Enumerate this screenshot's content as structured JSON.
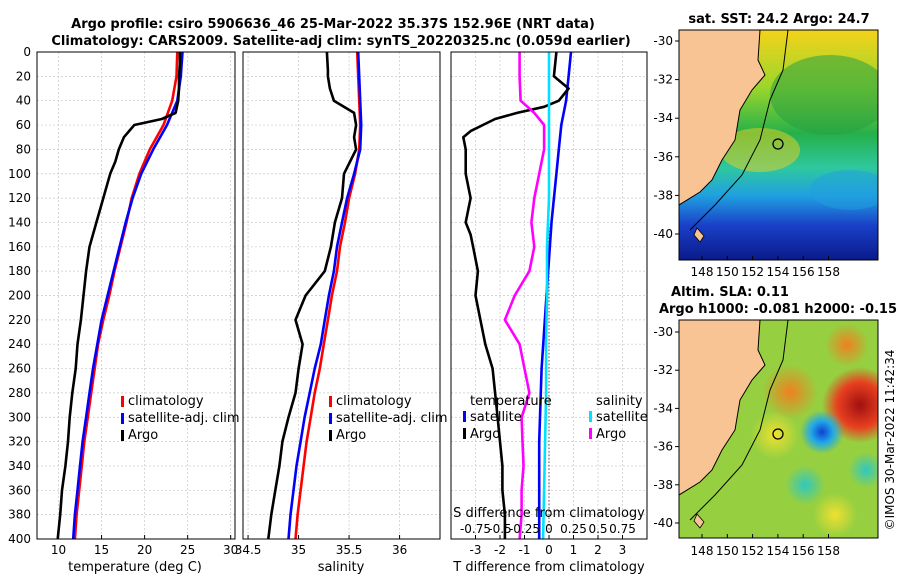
{
  "title": {
    "line1": "Argo profile: csiro 5906636_46 25-Mar-2022 35.37S 152.96E (NRT data)",
    "line2": "Climatology: CARS2009. Satellite-adj clim: synTS_20220325.nc (0.059d earlier)"
  },
  "map_sst": {
    "title": "sat. SST: 24.2 Argo: 24.7"
  },
  "map_sla": {
    "title_line1": "Altim. SLA: 0.11",
    "title_line2": "Argo h1000: -0.081 h2000: -0.15"
  },
  "maps": {
    "lat_ticks": [
      "-30",
      "-32",
      "-34",
      "-36",
      "-38",
      "-40"
    ],
    "lon_ticks": [
      "148",
      "150",
      "152",
      "154",
      "156",
      "158"
    ]
  },
  "credit": "©IMOS 30-Mar-2022 11:42:34",
  "chart_data": [
    {
      "type": "line",
      "name": "temperature",
      "xlabel": "temperature (deg C)",
      "ylabel": "",
      "xlim": [
        7.5,
        30.5
      ],
      "ylim": [
        400,
        0
      ],
      "grid": true,
      "x_ticks": [
        "10",
        "15",
        "20",
        "25",
        "30"
      ],
      "y_ticks": [
        "0",
        "20",
        "40",
        "60",
        "80",
        "100",
        "120",
        "140",
        "160",
        "180",
        "200",
        "220",
        "240",
        "260",
        "280",
        "300",
        "320",
        "340",
        "360",
        "380",
        "400"
      ],
      "legend": [
        "climatology",
        "satellite-adj. clim",
        "Argo"
      ],
      "legend_position": "right",
      "series": [
        {
          "name": "climatology",
          "color": "#ff0000",
          "depth": [
            0,
            20,
            40,
            60,
            80,
            100,
            120,
            140,
            160,
            180,
            200,
            220,
            240,
            260,
            280,
            300,
            320,
            340,
            360,
            380,
            400
          ],
          "values": [
            23.8,
            23.7,
            23.2,
            22.2,
            20.6,
            19.4,
            18.5,
            17.9,
            17.2,
            16.5,
            15.9,
            15.2,
            14.6,
            14.2,
            13.8,
            13.4,
            13.0,
            12.7,
            12.4,
            12.1,
            11.9
          ]
        },
        {
          "name": "satellite-adj. clim",
          "color": "#0000ff",
          "depth": [
            0,
            20,
            40,
            60,
            80,
            100,
            120,
            140,
            160,
            180,
            200,
            220,
            240,
            260,
            280,
            300,
            320,
            340,
            360,
            380,
            400
          ],
          "values": [
            24.4,
            24.2,
            23.8,
            22.6,
            21.0,
            19.6,
            18.6,
            17.8,
            17.1,
            16.4,
            15.7,
            15.0,
            14.5,
            14.0,
            13.6,
            13.2,
            12.8,
            12.5,
            12.2,
            11.9,
            11.7
          ]
        },
        {
          "name": "Argo",
          "color": "#000000",
          "depth": [
            0,
            10,
            20,
            30,
            40,
            50,
            55,
            60,
            70,
            80,
            90,
            100,
            120,
            140,
            160,
            180,
            200,
            220,
            240,
            260,
            280,
            300,
            320,
            340,
            360,
            380,
            400
          ],
          "values": [
            24.1,
            24.1,
            24.0,
            24.0,
            23.9,
            23.6,
            22.0,
            18.8,
            17.6,
            17.0,
            16.6,
            16.0,
            15.2,
            14.4,
            13.6,
            13.2,
            12.9,
            12.6,
            12.2,
            12.0,
            11.6,
            11.3,
            11.1,
            10.8,
            10.4,
            10.2,
            9.9
          ]
        }
      ]
    },
    {
      "type": "line",
      "name": "salinity",
      "xlabel": "salinity",
      "ylabel": "",
      "xlim": [
        34.45,
        36.4
      ],
      "ylim": [
        400,
        0
      ],
      "grid": true,
      "x_ticks": [
        "34.5",
        "35",
        "35.5",
        "36"
      ],
      "legend": [
        "climatology",
        "satellite-adj. clim",
        "Argo"
      ],
      "legend_position": "right",
      "series": [
        {
          "name": "climatology",
          "color": "#ff0000",
          "depth": [
            0,
            20,
            40,
            60,
            80,
            100,
            120,
            140,
            160,
            180,
            200,
            220,
            240,
            260,
            280,
            300,
            320,
            340,
            360,
            380,
            400
          ],
          "values": [
            35.58,
            35.59,
            35.6,
            35.61,
            35.6,
            35.56,
            35.5,
            35.46,
            35.41,
            35.38,
            35.33,
            35.29,
            35.25,
            35.21,
            35.16,
            35.12,
            35.08,
            35.05,
            35.02,
            34.99,
            34.97
          ]
        },
        {
          "name": "satellite-adj. clim",
          "color": "#0000ff",
          "depth": [
            0,
            20,
            40,
            60,
            80,
            100,
            120,
            140,
            160,
            180,
            200,
            220,
            240,
            260,
            280,
            300,
            320,
            340,
            360,
            380,
            400
          ],
          "values": [
            35.59,
            35.6,
            35.61,
            35.62,
            35.61,
            35.55,
            35.48,
            35.43,
            35.38,
            35.35,
            35.3,
            35.26,
            35.22,
            35.16,
            35.11,
            35.06,
            35.02,
            34.98,
            34.95,
            34.92,
            34.9
          ]
        },
        {
          "name": "Argo",
          "color": "#000000",
          "depth": [
            0,
            15,
            20,
            30,
            40,
            50,
            60,
            70,
            80,
            100,
            120,
            140,
            160,
            180,
            200,
            220,
            240,
            260,
            280,
            300,
            320,
            340,
            360,
            380,
            400
          ],
          "values": [
            35.28,
            35.29,
            35.29,
            35.31,
            35.35,
            35.55,
            35.57,
            35.55,
            35.57,
            35.45,
            35.43,
            35.36,
            35.32,
            35.26,
            35.07,
            34.97,
            35.04,
            35.0,
            34.97,
            34.9,
            34.84,
            34.81,
            34.77,
            34.73,
            34.7
          ]
        }
      ]
    },
    {
      "type": "line",
      "name": "difference",
      "xlabel": "T difference from climatology",
      "xlabel_top": "S difference from climatology",
      "xlim": [
        -4.0,
        4.0
      ],
      "ylim": [
        400,
        0
      ],
      "grid": true,
      "x_ticks": [
        "-3",
        "-2",
        "-1",
        "0",
        "1",
        "2",
        "3"
      ],
      "x_ticks_top": [
        "-0.75",
        "-0.5",
        "-0.25",
        "0",
        "0.25",
        "0.5",
        "0.75"
      ],
      "legend": {
        "temperature_label": "temperature",
        "salinity_label": "salinity",
        "entries": [
          "satellite",
          "Argo",
          "satellite",
          "Argo"
        ]
      },
      "series": [
        {
          "name": "T satellite",
          "color": "#0000ff",
          "depth": [
            0,
            20,
            40,
            60,
            80,
            100,
            140,
            200,
            260,
            320,
            400
          ],
          "values": [
            0.9,
            0.8,
            0.7,
            0.5,
            0.4,
            0.3,
            0.1,
            -0.1,
            -0.3,
            -0.4,
            -0.4
          ]
        },
        {
          "name": "T Argo",
          "color": "#000000",
          "depth": [
            0,
            20,
            30,
            40,
            45,
            50,
            55,
            60,
            65,
            70,
            80,
            100,
            120,
            140,
            150,
            160,
            180,
            200,
            220,
            240,
            260,
            280,
            300,
            320,
            340,
            360,
            380,
            400
          ],
          "values": [
            0.3,
            0.2,
            0.8,
            0.4,
            -0.2,
            -1.3,
            -2.2,
            -2.7,
            -3.2,
            -3.5,
            -3.4,
            -3.4,
            -3.2,
            -3.4,
            -3.2,
            -3.1,
            -2.9,
            -3.0,
            -2.8,
            -2.6,
            -2.3,
            -2.2,
            -2.1,
            -2.0,
            -1.9,
            -1.9,
            -1.8,
            -1.8
          ]
        },
        {
          "name": "S satellite",
          "color": "#00e0ff",
          "depth": [
            0,
            40,
            80,
            120,
            160,
            200,
            240,
            280,
            320,
            360,
            400
          ],
          "values": [
            0.0,
            0.0,
            0.0,
            0.0,
            -0.02,
            -0.02,
            -0.03,
            -0.03,
            -0.04,
            -0.05,
            -0.06
          ]
        },
        {
          "name": "S Argo",
          "color": "#ff00ff",
          "depth": [
            0,
            20,
            40,
            50,
            60,
            80,
            100,
            120,
            140,
            160,
            180,
            200,
            220,
            240,
            260,
            280,
            300,
            320,
            340,
            360,
            380,
            400
          ],
          "values": [
            -0.3,
            -0.3,
            -0.29,
            -0.15,
            -0.05,
            -0.05,
            -0.1,
            -0.15,
            -0.18,
            -0.15,
            -0.2,
            -0.35,
            -0.45,
            -0.3,
            -0.25,
            -0.2,
            -0.28,
            -0.27,
            -0.26,
            -0.28,
            -0.28,
            -0.3
          ]
        }
      ]
    }
  ]
}
